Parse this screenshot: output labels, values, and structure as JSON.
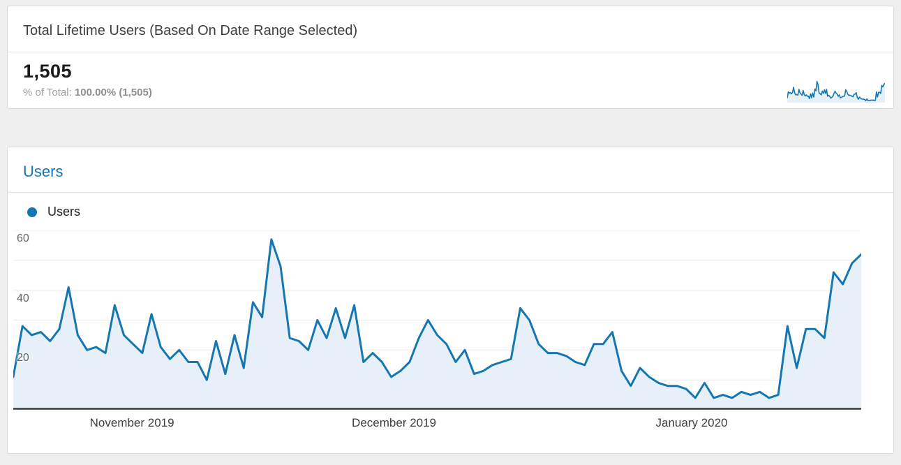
{
  "summary_card": {
    "title": "Total Lifetime Users (Based On Date Range Selected)",
    "value": "1,505",
    "percent_prefix": "% of Total:",
    "percent_value": "100.00%",
    "percent_total": "(1,505)"
  },
  "chart_card": {
    "title": "Users",
    "legend_label": "Users"
  },
  "colors": {
    "accent_blue": "#1577b2",
    "area_fill": "#e7f0f8",
    "gridline": "#ebebeb",
    "axis_line": "#3c3c3c"
  },
  "chart_data": {
    "type": "area",
    "title": "Users",
    "legend": [
      "Users"
    ],
    "legend_position": "top-left",
    "grid": true,
    "ylim": [
      0,
      60
    ],
    "y_axis": {
      "ticks": [
        20,
        40,
        60
      ],
      "gridline_step": 10
    },
    "x_axis": {
      "tick_labels": [
        {
          "label": "November 2019",
          "position": 0.14
        },
        {
          "label": "December 2019",
          "position": 0.449
        },
        {
          "label": "January 2020",
          "position": 0.8
        }
      ]
    },
    "series": [
      {
        "name": "Users",
        "values": [
          11,
          28,
          25,
          26,
          23,
          27,
          41,
          25,
          20,
          21,
          19,
          35,
          25,
          22,
          19,
          32,
          21,
          17,
          20,
          16,
          16,
          10,
          23,
          12,
          25,
          14,
          36,
          31,
          57,
          48,
          24,
          23,
          20,
          30,
          24,
          34,
          24,
          35,
          16,
          19,
          16,
          11,
          13,
          16,
          24,
          30,
          25,
          22,
          16,
          20,
          12,
          13,
          15,
          16,
          17,
          34,
          30,
          22,
          19,
          19,
          18,
          16,
          15,
          22,
          22,
          26,
          13,
          8,
          14,
          11,
          9,
          8,
          8,
          7,
          4,
          9,
          4,
          5,
          4,
          6,
          5,
          6,
          4,
          5,
          28,
          14,
          27,
          27,
          24,
          46,
          42,
          49,
          52
        ]
      }
    ]
  }
}
